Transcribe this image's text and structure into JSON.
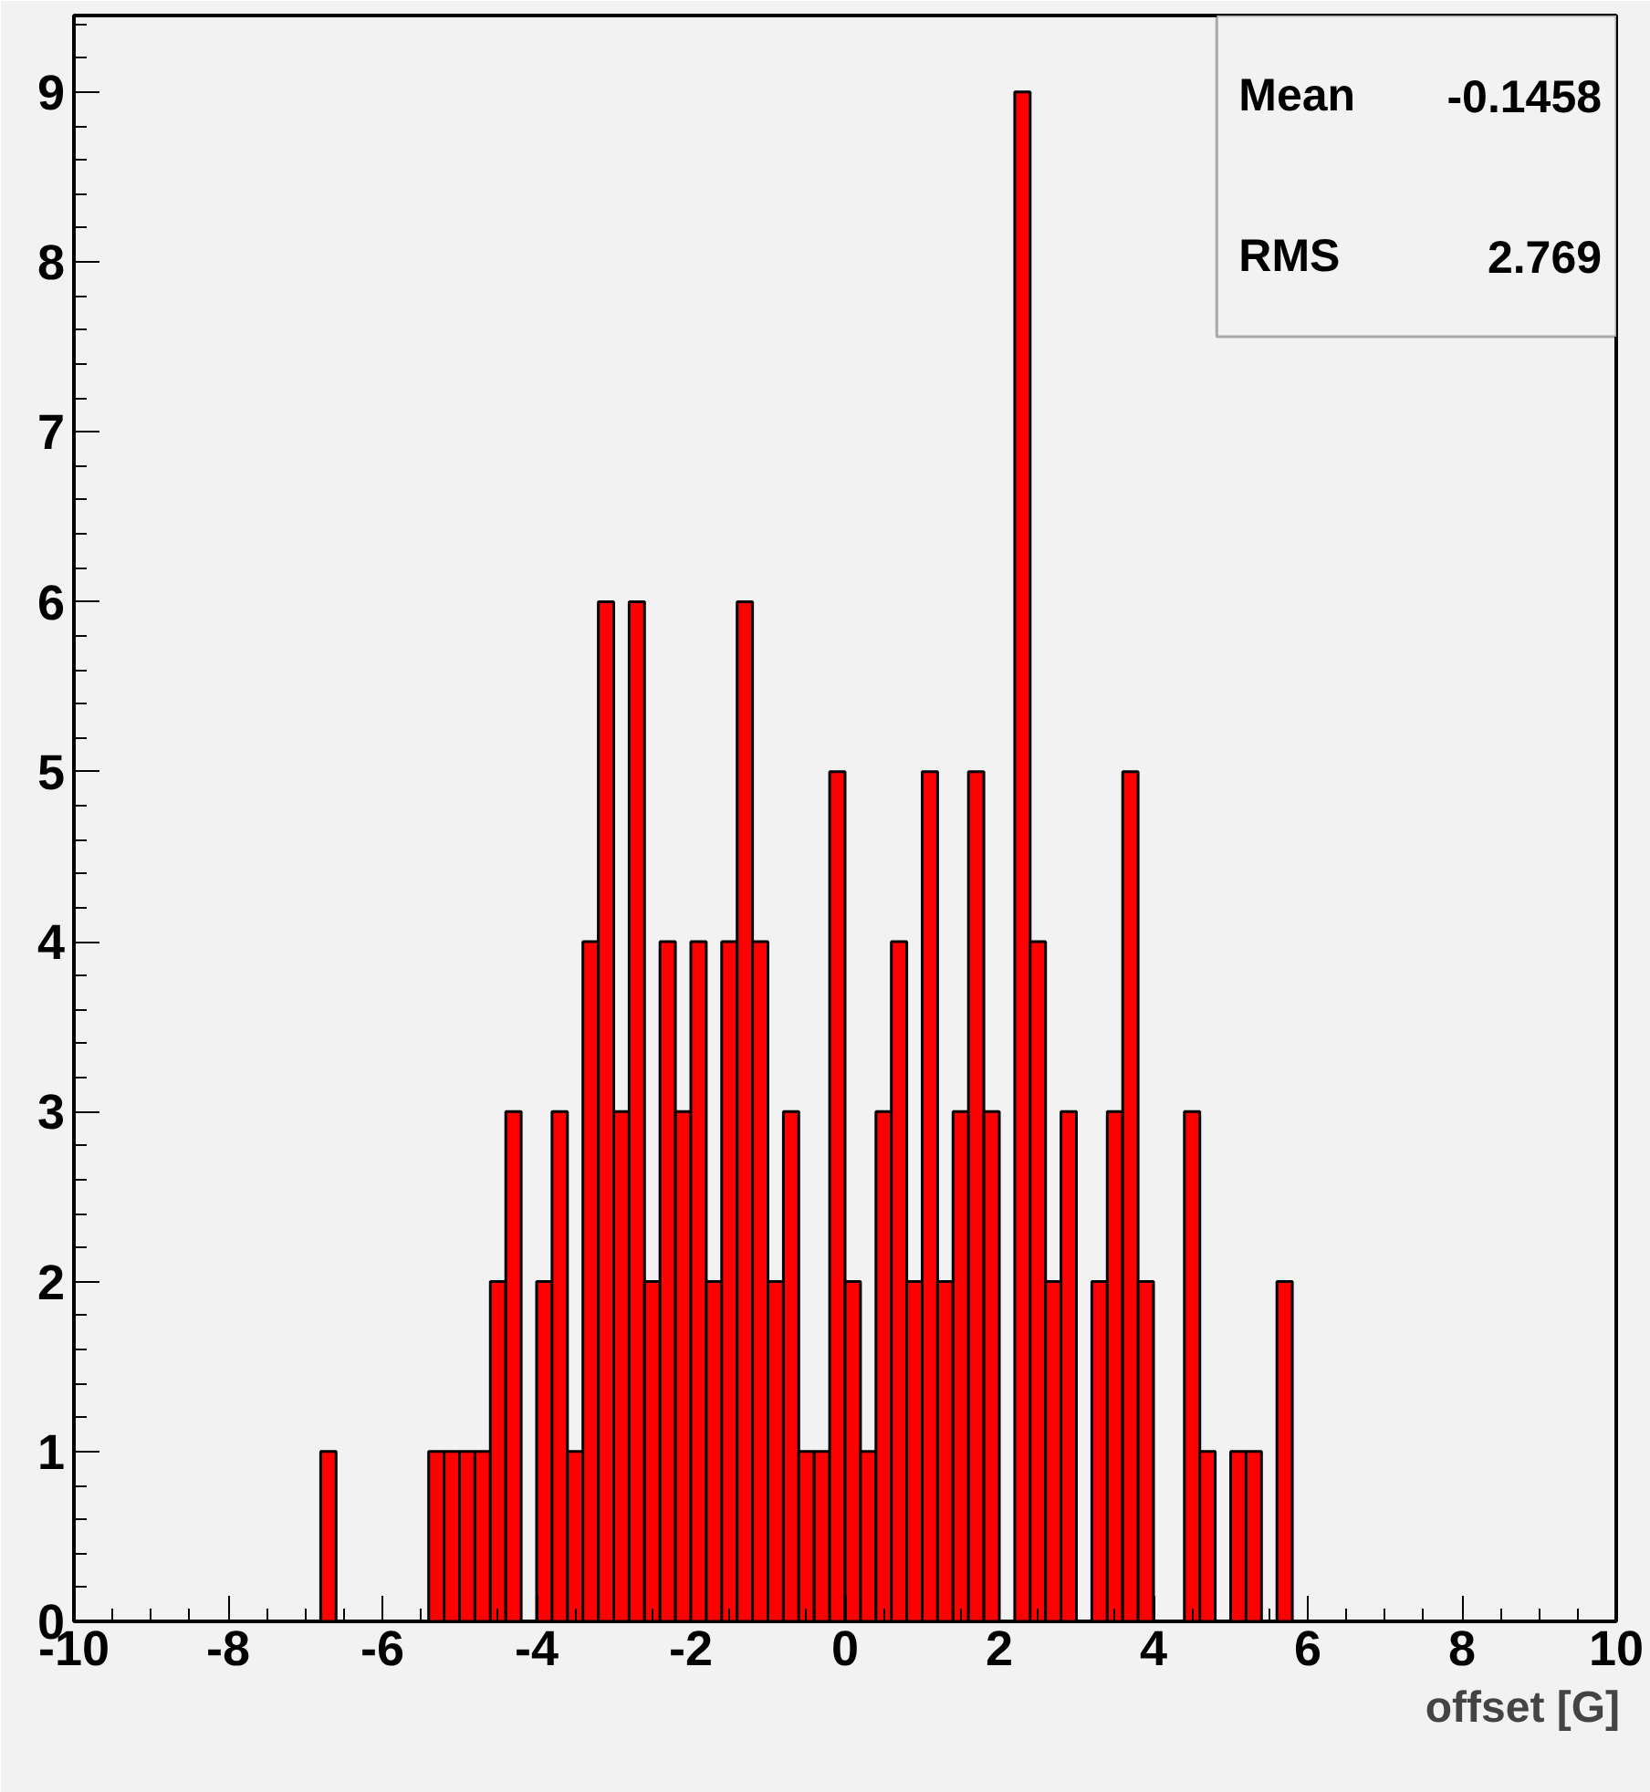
{
  "chart_data": {
    "type": "histogram",
    "xlabel": "offset [G]",
    "bins": [
      -10,
      -9.8,
      -9.6,
      -9.4,
      -9.2,
      -9,
      -8.8,
      -8.6,
      -8.4,
      -8.2,
      -8,
      -7.8,
      -7.6,
      -7.4,
      -7.2,
      -7,
      -6.8,
      -6.6,
      -6.4,
      -6.2,
      -6,
      -5.8,
      -5.6,
      -5.4,
      -5.2,
      -5,
      -4.8,
      -4.6,
      -4.4,
      -4.2,
      -4,
      -3.8,
      -3.6,
      -3.4,
      -3.2,
      -3,
      -2.8,
      -2.6,
      -2.4,
      -2.2,
      -2,
      -1.8,
      -1.6,
      -1.4,
      -1.2,
      -1,
      -0.8,
      -0.6,
      -0.4,
      -0.2,
      0,
      0.2,
      0.4,
      0.6,
      0.8,
      1,
      1.2,
      1.4,
      1.6,
      1.8,
      2,
      2.2,
      2.4,
      2.6,
      2.8,
      3,
      3.2,
      3.4,
      3.6,
      3.8,
      4,
      4.2,
      4.4,
      4.6,
      4.8,
      5,
      5.2,
      5.4,
      5.6,
      5.8,
      6,
      6.2,
      6.4,
      6.6,
      6.8,
      7,
      7.2,
      7.4,
      7.6,
      7.8,
      8,
      8.2,
      8.4,
      8.6,
      8.8,
      9,
      9.2,
      9.4,
      9.6,
      9.8,
      10
    ],
    "values": [
      0,
      0,
      0,
      0,
      0,
      0,
      0,
      0,
      0,
      0,
      0,
      0,
      0,
      0,
      0,
      0,
      1,
      0,
      0,
      0,
      0,
      0,
      0,
      1,
      1,
      1,
      1,
      2,
      3,
      0,
      2,
      3,
      1,
      4,
      6,
      3,
      6,
      2,
      4,
      3,
      4,
      2,
      4,
      6,
      4,
      2,
      3,
      1,
      1,
      5,
      2,
      1,
      3,
      4,
      2,
      5,
      2,
      3,
      5,
      3,
      0,
      9,
      4,
      2,
      3,
      0,
      2,
      3,
      5,
      2,
      0,
      0,
      3,
      1,
      0,
      1,
      1,
      0,
      2,
      0,
      0,
      0,
      0,
      0,
      0,
      0,
      0,
      0,
      0,
      0,
      0,
      0,
      0,
      0,
      0,
      0,
      0,
      0,
      0,
      0
    ],
    "color": "#ff0000",
    "xlim": [
      -10,
      10
    ],
    "ylim": [
      0,
      9.45
    ],
    "xticks": [
      -10,
      -8,
      -6,
      -4,
      -2,
      0,
      2,
      4,
      6,
      8,
      10
    ],
    "yticks": [
      0,
      1,
      2,
      3,
      4,
      5,
      6,
      7,
      8,
      9
    ],
    "grid": false,
    "annotations": [
      "Mean -0.1458",
      "RMS 2.769"
    ]
  }
}
